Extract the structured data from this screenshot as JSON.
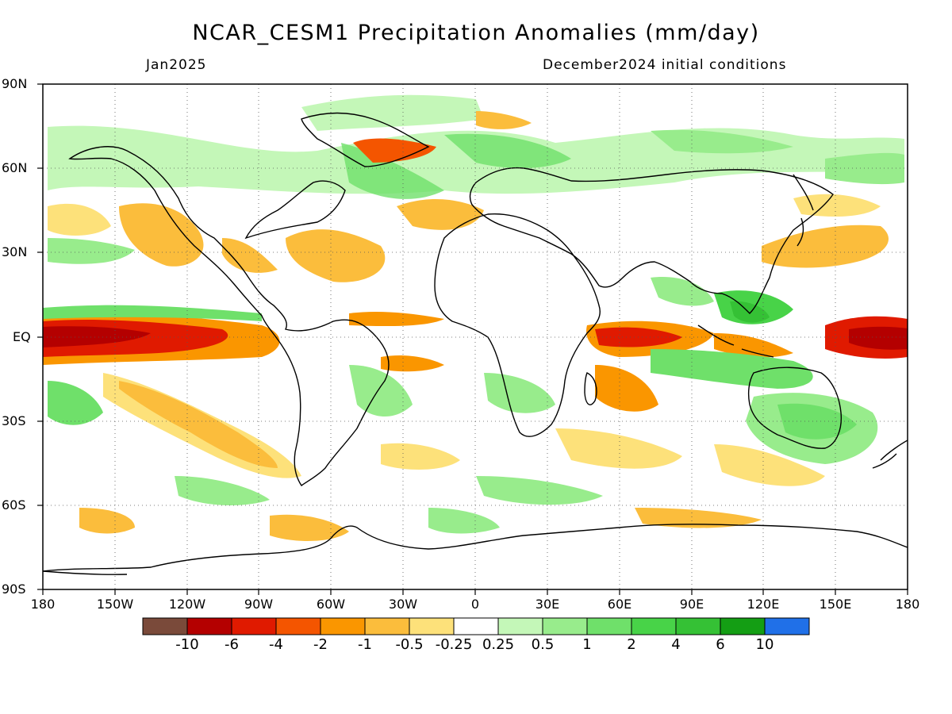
{
  "header": {
    "title": "NCAR_CESM1 Precipitation Anomalies (mm/day)",
    "valid_month": "Jan2025",
    "init_conditions": "December2024 initial conditions"
  },
  "axes": {
    "lat_labels": [
      "90N",
      "60N",
      "30N",
      "EQ",
      "30S",
      "60S",
      "90S"
    ],
    "lon_labels": [
      "180",
      "150W",
      "120W",
      "90W",
      "60W",
      "30W",
      "0",
      "30E",
      "60E",
      "90E",
      "120E",
      "150E",
      "180"
    ]
  },
  "colorbar": {
    "labels": [
      "-10",
      "-6",
      "-4",
      "-2",
      "-1",
      "-0.5",
      "-0.25",
      "0.25",
      "0.5",
      "1",
      "2",
      "4",
      "6",
      "10"
    ],
    "colors": [
      "#7a4a3a",
      "#b40000",
      "#e01a00",
      "#f45500",
      "#fa9600",
      "#fbbd3c",
      "#fde17a",
      "#ffffff",
      "#c4f7b8",
      "#98ec8c",
      "#6fe06a",
      "#48d348",
      "#35c135",
      "#149e14",
      "#2070e8"
    ]
  },
  "map": {
    "projection": "lat-lon",
    "lon_range": [
      -180,
      180
    ],
    "lat_range": [
      -90,
      90
    ],
    "grid": "dotted every 30 degrees"
  }
}
